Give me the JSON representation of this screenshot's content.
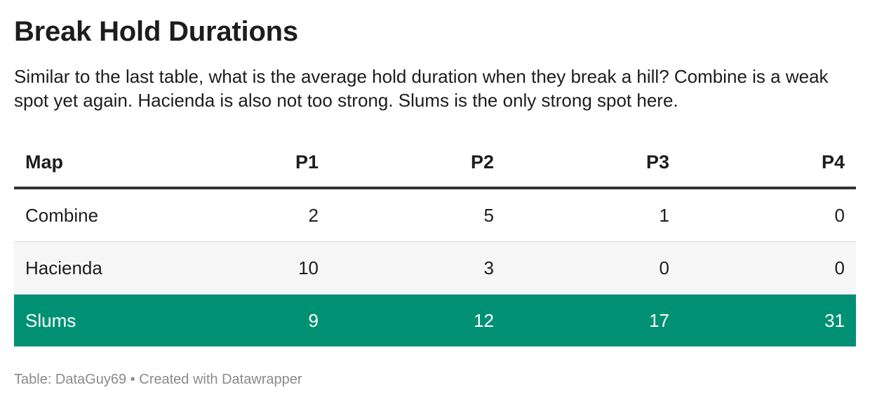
{
  "header": {
    "title": "Break Hold Durations",
    "description": "Similar to the last table, what is the average hold duration when they break a hill? Combine is a weak spot yet again. Hacienda is also not too strong. Slums is the only strong spot here."
  },
  "chart_data": {
    "type": "table",
    "title": "Break Hold Durations",
    "columns": [
      "Map",
      "P1",
      "P2",
      "P3",
      "P4"
    ],
    "rows": [
      {
        "map": "Combine",
        "values": [
          "2",
          "5",
          "1",
          "0"
        ],
        "highlight": false
      },
      {
        "map": "Hacienda",
        "values": [
          "10",
          "3",
          "0",
          "0"
        ],
        "highlight": false
      },
      {
        "map": "Slums",
        "values": [
          "9",
          "12",
          "17",
          "31"
        ],
        "highlight": true
      }
    ],
    "highlight_color": "#009175"
  },
  "footer": {
    "source_label": "Table: DataGuy69",
    "separator": "•",
    "credit": "Created with Datawrapper"
  }
}
